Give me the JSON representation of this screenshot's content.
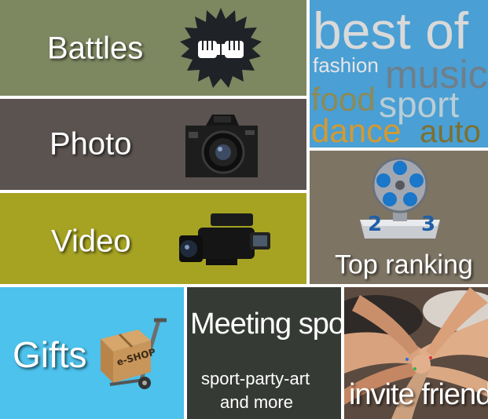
{
  "tiles": {
    "battles": {
      "label": "Battles",
      "color": "#7d8760",
      "icon": "fist-bump-badge-icon"
    },
    "photo": {
      "label": "Photo",
      "color": "#5a5350",
      "icon": "camera-icon"
    },
    "video": {
      "label": "Video",
      "color": "#a6a323",
      "icon": "video-camera-icon"
    },
    "best_of": {
      "title": "best of",
      "color": "#4a9fd4",
      "tags": [
        "fashion",
        "music",
        "food",
        "sport",
        "dance",
        "auto"
      ]
    },
    "top_ranking": {
      "label": "Top ranking",
      "color": "#7d7464",
      "icon": "film-reel-trophy-icon"
    },
    "gifts": {
      "label": "Gifts",
      "color": "#4cc2ec",
      "icon": "eshop-box-cart-icon",
      "box_text": "e-SHOP"
    },
    "meeting_spot": {
      "title": "Meeting spot",
      "subtitle_line1": "sport-party-art",
      "subtitle_line2": "and more",
      "color": "#363a35"
    },
    "invite_friends": {
      "label": "invite friends",
      "color": "#7a6a5e",
      "image": "stacked-hands-photo"
    }
  }
}
